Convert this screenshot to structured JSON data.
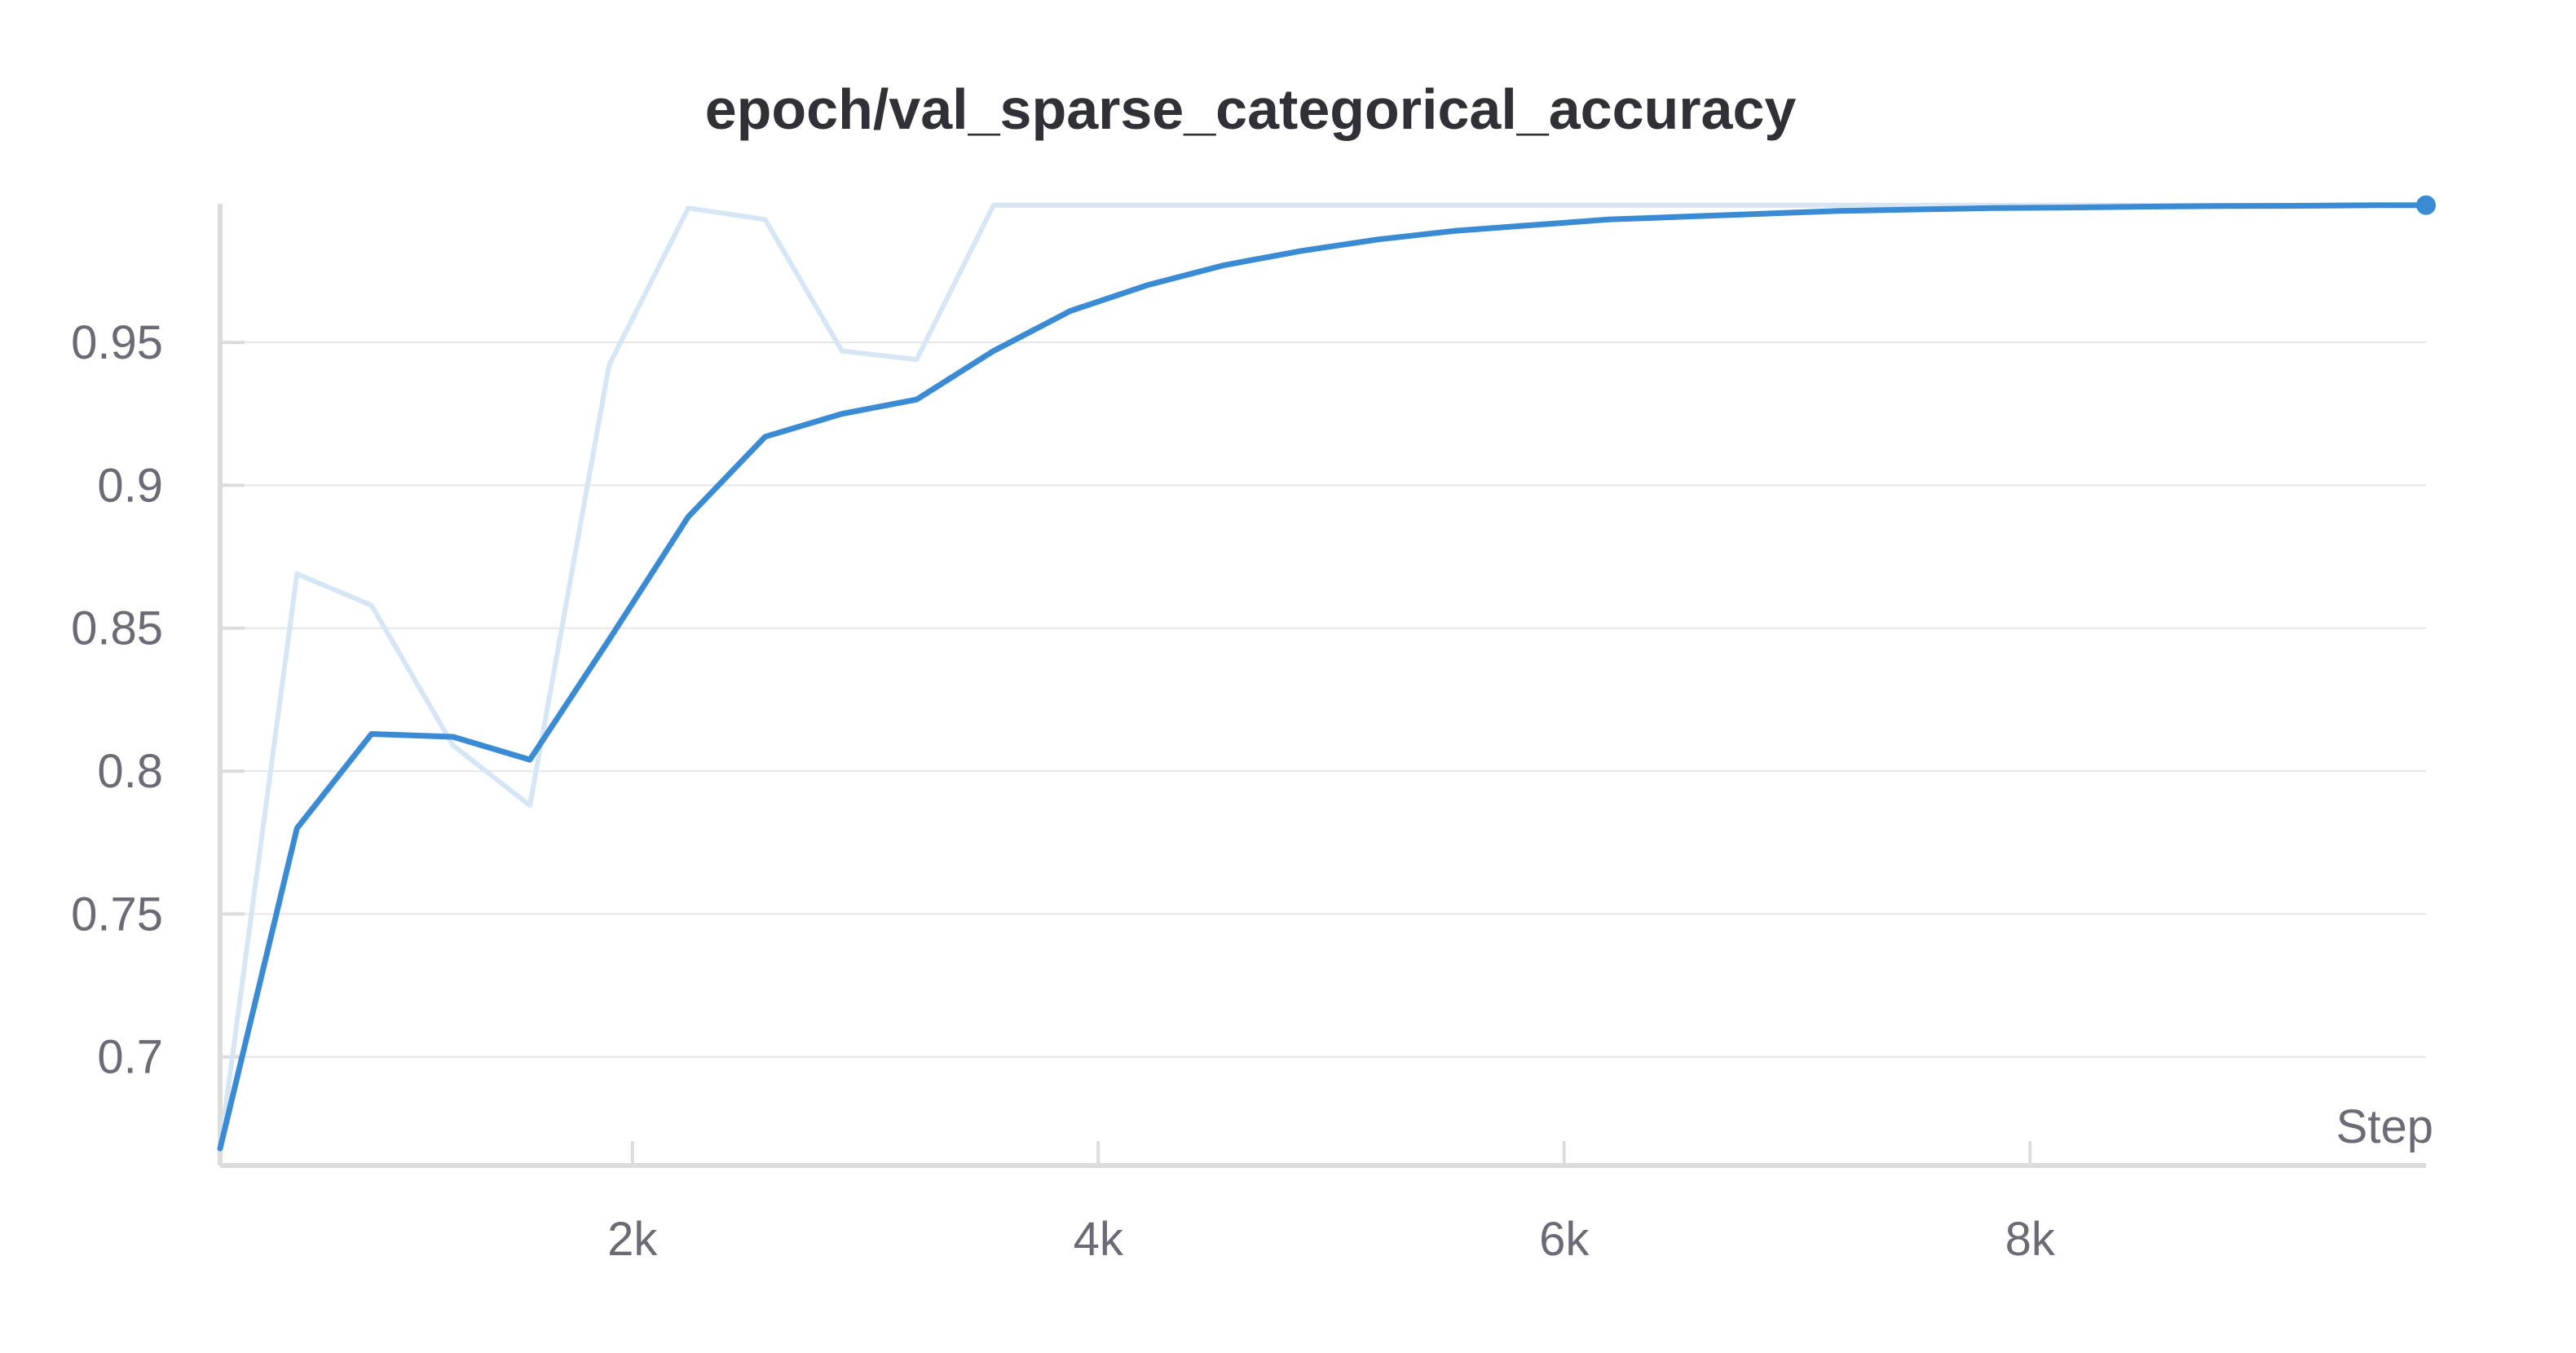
{
  "chart_data": {
    "type": "line",
    "title": "epoch/val_sparse_categorical_accuracy",
    "xlabel": "Step",
    "ylabel": "",
    "xlim": [
      230,
      9700
    ],
    "ylim": [
      0.662,
      0.9985
    ],
    "x_ticks": [
      {
        "value": 2000,
        "label": "2k"
      },
      {
        "value": 4000,
        "label": "4k"
      },
      {
        "value": 6000,
        "label": "6k"
      },
      {
        "value": 8000,
        "label": "8k"
      }
    ],
    "y_ticks": [
      {
        "value": 0.7,
        "label": "0.7"
      },
      {
        "value": 0.75,
        "label": "0.75"
      },
      {
        "value": 0.8,
        "label": "0.8"
      },
      {
        "value": 0.85,
        "label": "0.85"
      },
      {
        "value": 0.9,
        "label": "0.9"
      },
      {
        "value": 0.95,
        "label": "0.95"
      }
    ],
    "grid": true,
    "colors": {
      "smoothed": "#3a8bd4",
      "raw": "#d6e6f5",
      "grid": "#e6e6e6",
      "axis": "#dcdcdc"
    },
    "series": [
      {
        "role": "raw",
        "x": [
          230,
          560,
          880,
          1230,
          1560,
          1900,
          2240,
          2570,
          2900,
          3220,
          3550,
          9700
        ],
        "y": [
          0.668,
          0.869,
          0.858,
          0.809,
          0.788,
          0.942,
          0.997,
          0.993,
          0.947,
          0.944,
          0.998,
          0.998
        ]
      },
      {
        "role": "smoothed",
        "x": [
          230,
          560,
          880,
          1230,
          1560,
          1900,
          2240,
          2570,
          2900,
          3220,
          3550,
          3880,
          4210,
          4540,
          4870,
          5200,
          5530,
          5860,
          6190,
          6520,
          6850,
          7180,
          7510,
          7840,
          8170,
          8500,
          8830,
          9160,
          9490,
          9700
        ],
        "y": [
          0.668,
          0.78,
          0.813,
          0.812,
          0.804,
          0.846,
          0.889,
          0.917,
          0.925,
          0.93,
          0.947,
          0.961,
          0.97,
          0.977,
          0.982,
          0.986,
          0.989,
          0.991,
          0.993,
          0.994,
          0.995,
          0.996,
          0.9965,
          0.997,
          0.9972,
          0.9975,
          0.9977,
          0.9978,
          0.998,
          0.998
        ]
      }
    ]
  }
}
